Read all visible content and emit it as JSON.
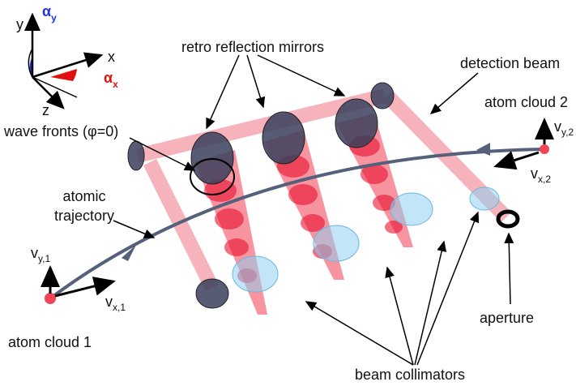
{
  "axes": {
    "y": "y",
    "x": "x",
    "z": "z",
    "alpha_y": {
      "symbol": "α",
      "sub": "y"
    },
    "alpha_x": {
      "symbol": "α",
      "sub": "x"
    }
  },
  "labels": {
    "mirrors": "retro reflection mirrors",
    "detection_beam": "detection beam",
    "atom_cloud_2": "atom cloud 2",
    "v_y2": {
      "symbol": "v",
      "sub": "y,2"
    },
    "v_x2": {
      "symbol": "v",
      "sub": "x,2"
    },
    "wave_fronts": "wave fronts (φ=0)",
    "trajectory": [
      "atomic",
      "trajectory"
    ],
    "v_y1": {
      "symbol": "v",
      "sub": "y,1"
    },
    "v_x1": {
      "symbol": "v",
      "sub": "x,1"
    },
    "atom_cloud_1": "atom cloud 1",
    "aperture": "aperture",
    "collimators": "beam collimators"
  }
}
